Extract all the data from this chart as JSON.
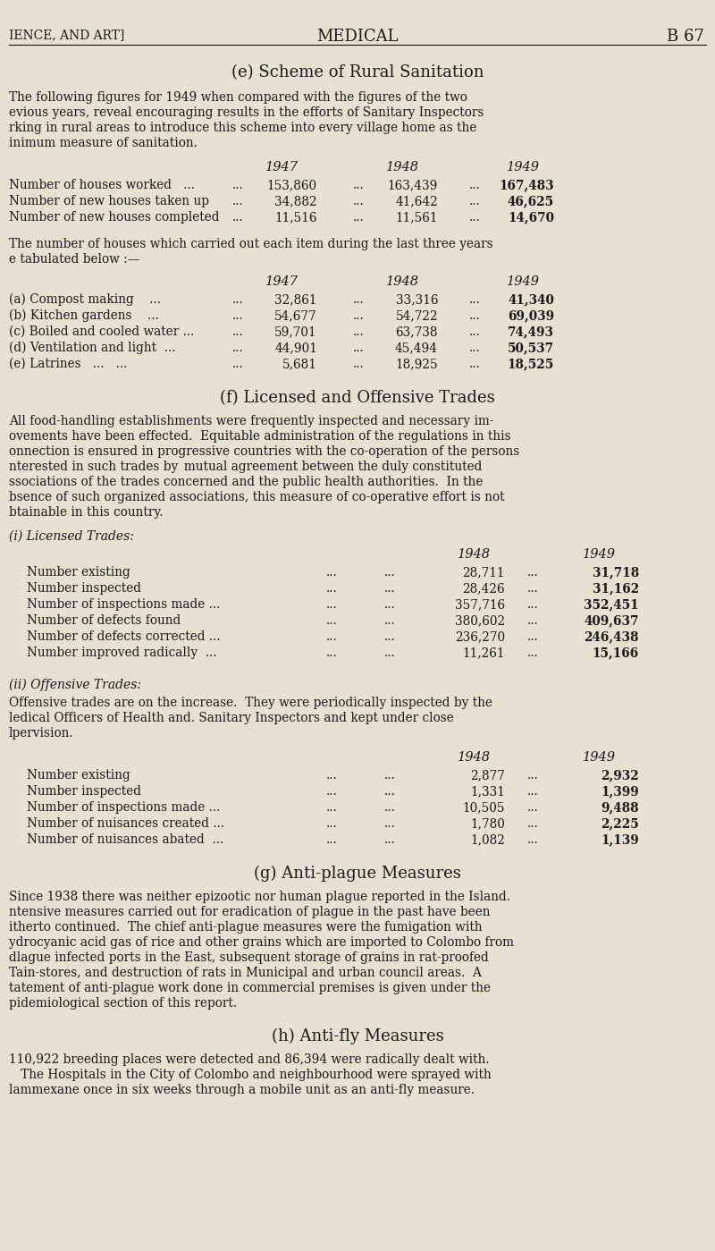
{
  "bg_color": "#e8e0d0",
  "text_color": "#1a1a1a",
  "header_left": "IENCE, AND ART]",
  "header_center": "MEDICAL",
  "header_right": "B 67",
  "intro_lines": [
    "The following figures for 1949 when compared with the figures of the two",
    "evious years, reveal encouraging results in the efforts of Sanitary Inspectors",
    "rking in rural areas to introduce this scheme into every village home as the",
    "inimum measure of sanitation."
  ],
  "table1_rows": [
    [
      "Number of houses worked   ...",
      "153,860",
      "163,439",
      "167,483"
    ],
    [
      "Number of new houses taken up",
      "34,882",
      "41,642",
      "46,625"
    ],
    [
      "Number of new houses completed",
      "11,516",
      "11,561",
      "14,670"
    ]
  ],
  "table2_intro": [
    "The number of houses which carried out each item during the last three years",
    "e tabulated below :—"
  ],
  "table2_rows": [
    [
      "(a) Compost making    ...",
      "32,861",
      "33,316",
      "41,340"
    ],
    [
      "(b) Kitchen gardens    ...",
      "54,677",
      "54,722",
      "69,039"
    ],
    [
      "(c) Boiled and cooled water ...",
      "59,701",
      "63,738",
      "74,493"
    ],
    [
      "(d) Ventilation and light  ...",
      "44,901",
      "45,494",
      "50,537"
    ],
    [
      "(e) Latrines   ...   ...",
      "5,681",
      "18,925",
      "18,525"
    ]
  ],
  "f_intro_lines": [
    "All food-handling establishments were frequently inspected and necessary im-",
    "ovements have been effected.  Equitable administration of the regulations in this",
    "onnection is ensured in progressive countries with the co-operation of the persons",
    "nterested in such trades by  mutual agreement between the duly constituted",
    "ssociations of the trades concerned and the public health authorities.  In the",
    "bsence of such organized associations, this measure of co-operative effort is not",
    "btainable in this country."
  ],
  "licensed_rows": [
    [
      "Number existing",
      "28,711",
      "31,718"
    ],
    [
      "Number inspected",
      "28,426",
      "31,162"
    ],
    [
      "Number of inspections made ...",
      "357,716",
      "352,451"
    ],
    [
      "Number of defects found",
      "380,602",
      "409,637"
    ],
    [
      "Number of defects corrected ...",
      "236,270",
      "246,438"
    ],
    [
      "Number improved radically  ...",
      "11,261",
      "15,166"
    ]
  ],
  "offensive_intro_lines": [
    "Offensive trades are on the increase.  They were periodically inspected by the",
    "ledical Officers of Health and. Sanitary Inspectors and kept under close",
    "lpervision."
  ],
  "offensive_rows": [
    [
      "Number existing",
      "2,877",
      "2,932"
    ],
    [
      "Number inspected",
      "1,331",
      "1,399"
    ],
    [
      "Number of inspections made ...",
      "10,505",
      "9,488"
    ],
    [
      "Number of nuisances created ...",
      "1,780",
      "2,225"
    ],
    [
      "Number of nuisances abated  ...",
      "1,082",
      "1,139"
    ]
  ],
  "g_lines": [
    "Since 1938 there was neither epizootic nor human plague reported in the Island.",
    "ntensive measures carried out for eradication of plague in the past have been",
    "itherto continued.  The chief anti-plague measures were the fumigation with",
    "ydrocyanic acid gas of rice and other grains which are imported to Colombo from",
    "dlague infected ports in the East, subsequent storage of grains in rat-proofed",
    "Tain-stores, and destruction of rats in Municipal and urban council areas.  A",
    "tatement of anti-plague work done in commercial premises is given under the",
    "pidemiological section of this report."
  ],
  "h_lines": [
    "110,922 breeding places were detected and 86,394 were radically dealt with.",
    "   The Hospitals in the City of Colombo and neighbourhood were sprayed with",
    "lammexane once in six weeks through a mobile unit as an anti-fly measure."
  ]
}
